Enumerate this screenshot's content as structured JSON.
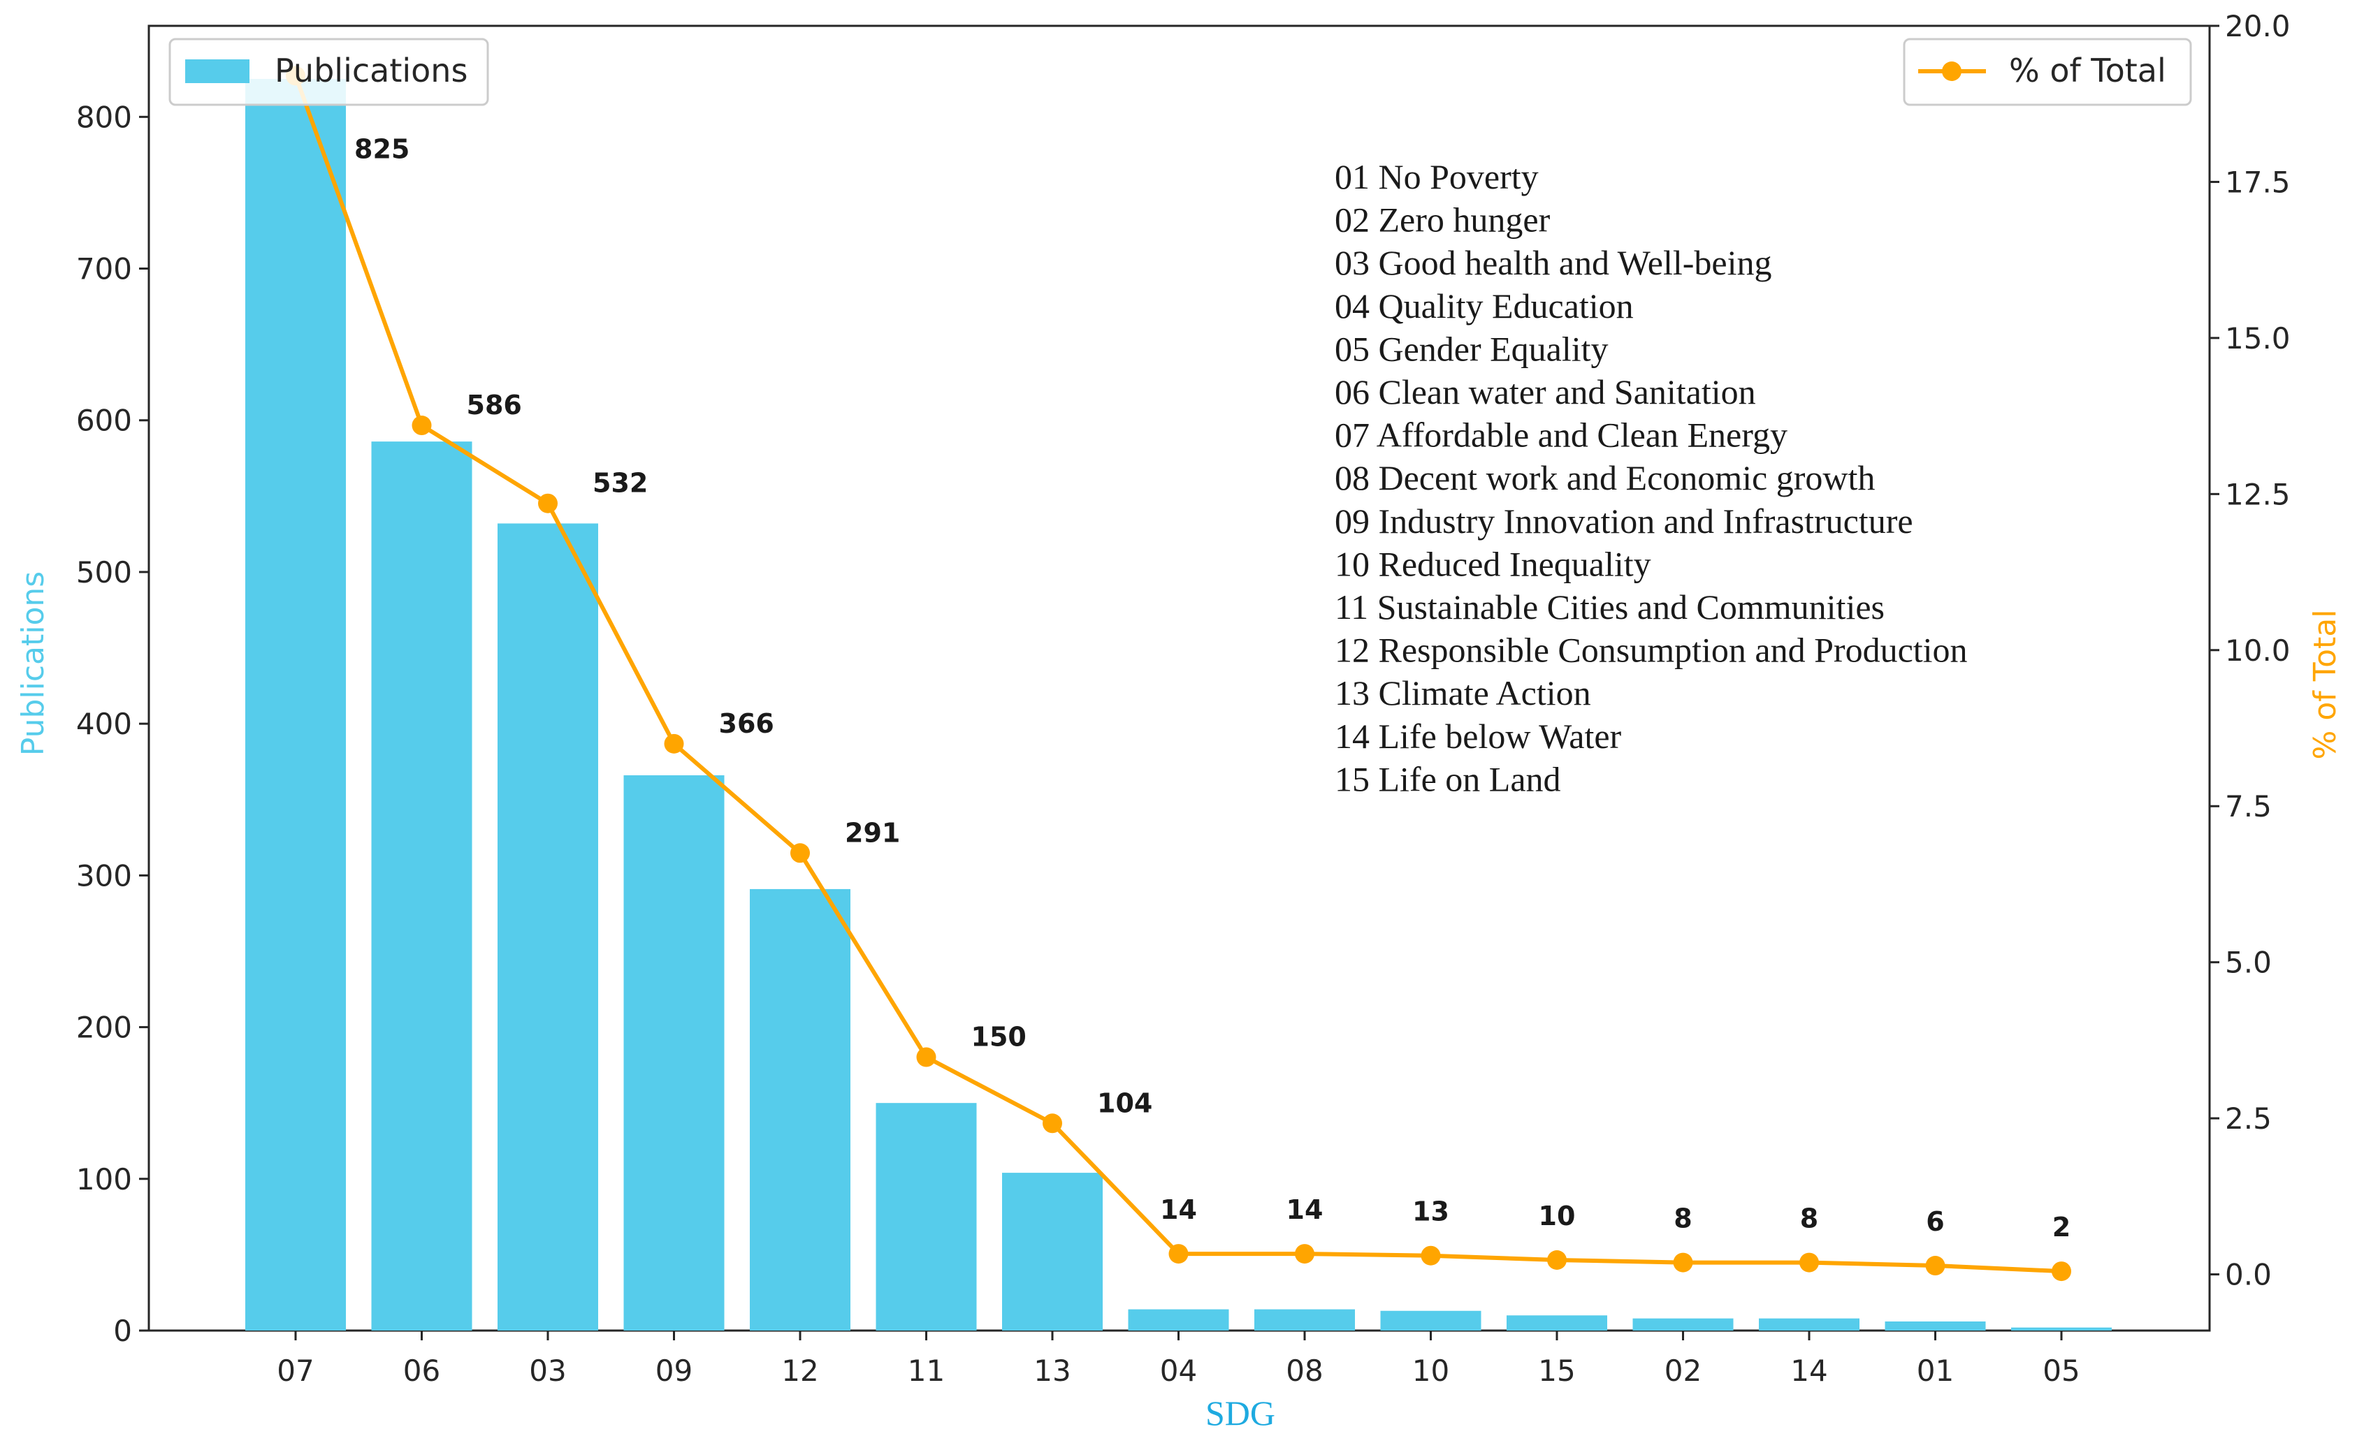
{
  "chart_data": {
    "type": "bar",
    "categories": [
      "07",
      "06",
      "03",
      "09",
      "12",
      "11",
      "13",
      "04",
      "08",
      "10",
      "15",
      "02",
      "14",
      "01",
      "05"
    ],
    "series": [
      {
        "name": "Publications",
        "type": "bar",
        "axis": "left",
        "color": "#56CCEB",
        "values": [
          825,
          586,
          532,
          366,
          291,
          150,
          104,
          14,
          14,
          13,
          10,
          8,
          8,
          6,
          2
        ]
      },
      {
        "name": "% of Total",
        "type": "line",
        "axis": "right",
        "color": "#FFA500",
        "values": [
          19.2,
          13.6,
          12.35,
          8.5,
          6.75,
          3.48,
          2.42,
          0.33,
          0.33,
          0.3,
          0.23,
          0.19,
          0.19,
          0.14,
          0.05
        ]
      }
    ],
    "data_labels": [
      "825",
      "586",
      "532",
      "366",
      "291",
      "150",
      "104",
      "14",
      "14",
      "13",
      "10",
      "8",
      "8",
      "6",
      "2"
    ],
    "xlabel": "SDG",
    "ylabel": "Publications",
    "y2label": "% of Total",
    "ylim": [
      0,
      860
    ],
    "y2lim": [
      -0.9,
      20.0
    ],
    "yticks": [
      0,
      100,
      200,
      300,
      400,
      500,
      600,
      700,
      800
    ],
    "y2ticks": [
      "0.0",
      "2.5",
      "5.0",
      "7.5",
      "10.0",
      "12.5",
      "15.0",
      "17.5",
      "20.0"
    ],
    "grid": false,
    "legend_left": {
      "label": "Publications",
      "placement": "top-left"
    },
    "legend_right": {
      "label": "% of Total",
      "placement": "top-right"
    },
    "annotation_lines": [
      "01 No Poverty",
      "02 Zero hunger",
      "03 Good health and Well-being",
      "04 Quality Education",
      "05 Gender Equality",
      "06 Clean water and Sanitation",
      "07 Affordable and Clean Energy",
      "08 Decent work and Economic growth",
      "09 Industry Innovation and Infrastructure",
      "10 Reduced Inequality",
      "11 Sustainable Cities and Communities",
      "12 Responsible Consumption and Production",
      "13 Climate Action",
      "14 Life below Water",
      "15 Life on Land"
    ],
    "colors": {
      "bar": "#56CCEB",
      "line": "#FFA500",
      "left_axis_title": "#56CCEB",
      "right_axis_title": "#FFA500",
      "x_axis_title": "#1EAAE0"
    }
  }
}
